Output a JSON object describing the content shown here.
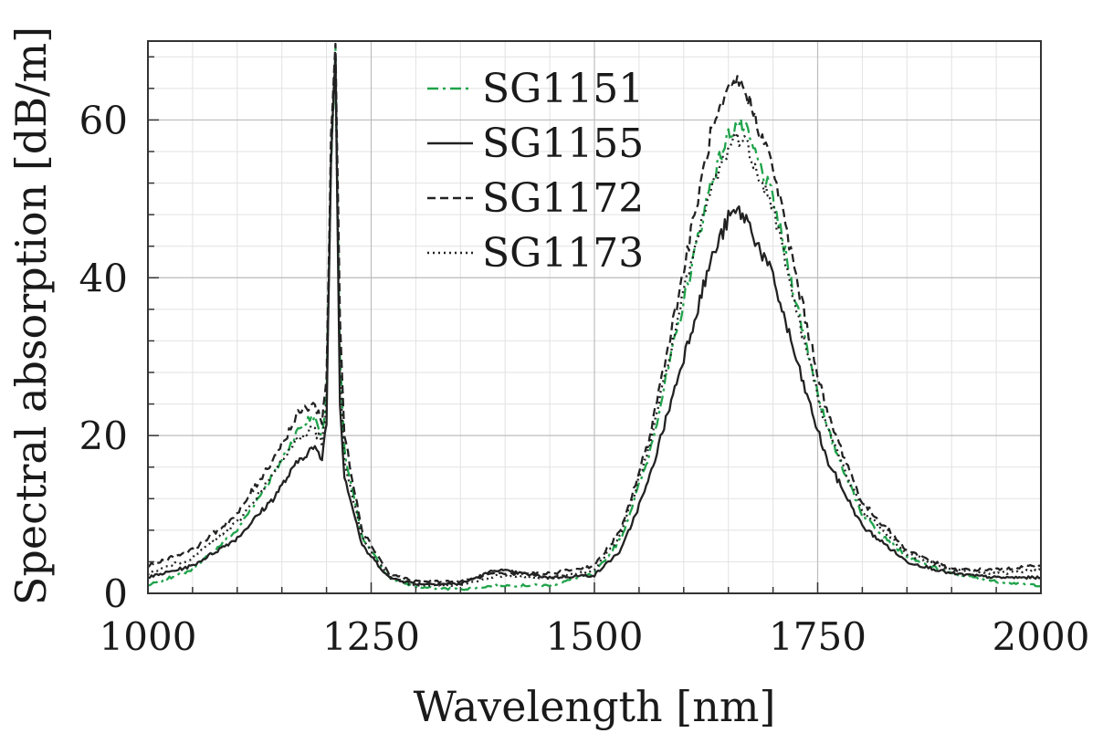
{
  "chart_data": {
    "type": "line",
    "title": "",
    "xlabel": "Wavelength [nm]",
    "ylabel": "Spectral absorption [dB/m]",
    "xlim": [
      1000,
      2000
    ],
    "ylim": [
      0,
      70
    ],
    "xticks": [
      1000,
      1250,
      1500,
      1750,
      2000
    ],
    "xtick_labels": [
      "1000",
      "1250",
      "1500",
      "1750",
      "2000"
    ],
    "yticks": [
      0,
      20,
      40,
      60
    ],
    "ytick_labels": [
      "0",
      "20",
      "40",
      "60"
    ],
    "grid": true,
    "legend_position": "top-center",
    "series": [
      {
        "name": "SG1151",
        "color": "#1fa34a",
        "line_style": "dash-dot",
        "x": [
          1000,
          1050,
          1100,
          1140,
          1170,
          1185,
          1195,
          1200,
          1205,
          1210,
          1215,
          1220,
          1240,
          1270,
          1300,
          1350,
          1390,
          1450,
          1500,
          1530,
          1560,
          1600,
          1630,
          1650,
          1660,
          1670,
          1700,
          1730,
          1760,
          1800,
          1850,
          1900,
          1950,
          2000
        ],
        "y": [
          1,
          3,
          8,
          15,
          21,
          22.5,
          20,
          25,
          55,
          68,
          30,
          18,
          7,
          2,
          0.8,
          0.5,
          1,
          1,
          2.5,
          7,
          17,
          37,
          52,
          58,
          59.5,
          58.5,
          50,
          35,
          21,
          10,
          4.5,
          2.5,
          1.5,
          1
        ]
      },
      {
        "name": "SG1155",
        "color": "#222222",
        "line_style": "solid",
        "x": [
          1000,
          1050,
          1100,
          1140,
          1170,
          1185,
          1195,
          1200,
          1205,
          1210,
          1215,
          1220,
          1240,
          1270,
          1300,
          1350,
          1390,
          1450,
          1500,
          1530,
          1560,
          1600,
          1630,
          1650,
          1660,
          1670,
          1700,
          1730,
          1760,
          1800,
          1850,
          1900,
          1950,
          2000
        ],
        "y": [
          2,
          3.5,
          7,
          12,
          17,
          18.5,
          17,
          22,
          55,
          69,
          24,
          15,
          6,
          2,
          1.2,
          1.2,
          3,
          2,
          2.3,
          5.5,
          14,
          30,
          42,
          47.5,
          48.5,
          47.5,
          40,
          28,
          17,
          8.5,
          4,
          2.5,
          2,
          2
        ]
      },
      {
        "name": "SG1172",
        "color": "#222222",
        "line_style": "dashed",
        "x": [
          1000,
          1050,
          1100,
          1140,
          1170,
          1185,
          1195,
          1200,
          1205,
          1210,
          1215,
          1220,
          1240,
          1270,
          1300,
          1350,
          1390,
          1450,
          1500,
          1530,
          1560,
          1600,
          1630,
          1650,
          1660,
          1670,
          1700,
          1730,
          1760,
          1800,
          1850,
          1900,
          1950,
          2000
        ],
        "y": [
          3.5,
          5.5,
          10,
          17,
          23,
          24,
          22,
          27,
          58,
          70,
          35,
          20,
          8,
          2.5,
          1.5,
          1.5,
          2.5,
          2.5,
          3.5,
          8,
          19,
          41,
          58,
          63.5,
          65,
          63.5,
          54,
          38,
          23,
          11.5,
          5.5,
          3,
          3,
          3.5
        ]
      },
      {
        "name": "SG1173",
        "color": "#222222",
        "line_style": "dotted",
        "x": [
          1000,
          1050,
          1100,
          1140,
          1170,
          1185,
          1195,
          1200,
          1205,
          1210,
          1215,
          1220,
          1240,
          1270,
          1300,
          1350,
          1390,
          1450,
          1500,
          1530,
          1560,
          1600,
          1630,
          1650,
          1660,
          1670,
          1700,
          1730,
          1760,
          1800,
          1850,
          1900,
          1950,
          2000
        ],
        "y": [
          2.5,
          4.5,
          9,
          15,
          20,
          21,
          19,
          24,
          56,
          68,
          28,
          17,
          7,
          2,
          1,
          1,
          2.2,
          2,
          3,
          7.5,
          18,
          38,
          51,
          56.5,
          58,
          57,
          49,
          34,
          21,
          10.5,
          5,
          3,
          2.5,
          3
        ]
      }
    ]
  }
}
